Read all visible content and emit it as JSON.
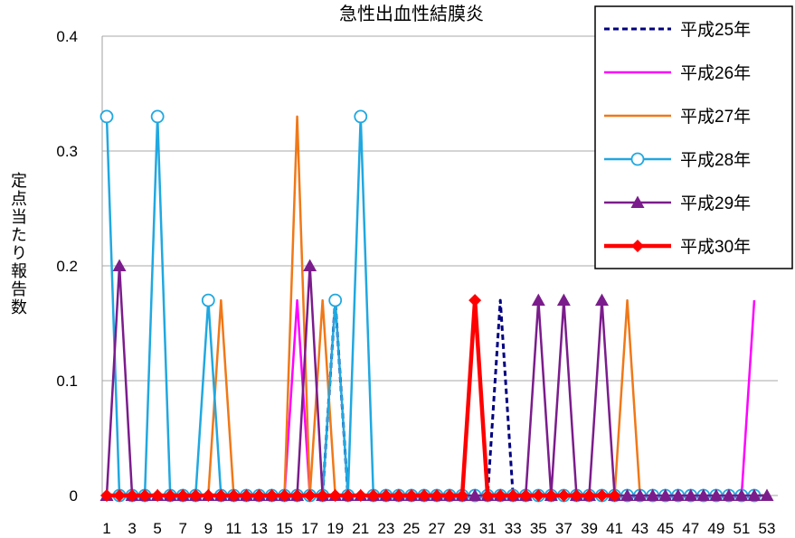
{
  "chart_data": {
    "type": "line",
    "title": "急性出血性結膜炎",
    "ylabel": "定点当たり報告数",
    "xlabel": "",
    "ylim": [
      0,
      0.4
    ],
    "yticks": [
      0,
      0.1,
      0.2,
      0.3,
      0.4
    ],
    "ytick_labels": [
      "0",
      "0.1",
      "0.2",
      "0.3",
      "0.4"
    ],
    "x": [
      1,
      2,
      3,
      4,
      5,
      6,
      7,
      8,
      9,
      10,
      11,
      12,
      13,
      14,
      15,
      16,
      17,
      18,
      19,
      20,
      21,
      22,
      23,
      24,
      25,
      26,
      27,
      28,
      29,
      30,
      31,
      32,
      33,
      34,
      35,
      36,
      37,
      38,
      39,
      40,
      41,
      42,
      43,
      44,
      45,
      46,
      47,
      48,
      49,
      50,
      51,
      52,
      53
    ],
    "xtick_labels": [
      "1",
      "3",
      "5",
      "7",
      "9",
      "11",
      "13",
      "15",
      "17",
      "19",
      "21",
      "23",
      "25",
      "27",
      "29",
      "31",
      "33",
      "35",
      "37",
      "39",
      "41",
      "43",
      "45",
      "47",
      "49",
      "51",
      "53"
    ],
    "grid": "horizontal",
    "legend_position": "top-right",
    "series": [
      {
        "name": "平成25年",
        "color": "#000080",
        "style": "dashed",
        "marker": "none",
        "values": [
          0,
          0,
          0,
          0,
          0,
          0,
          0,
          0,
          0,
          0,
          0,
          0,
          0,
          0,
          0,
          0,
          0,
          0,
          0.17,
          0,
          0,
          0,
          0,
          0,
          0,
          0,
          0,
          0,
          0,
          0,
          0,
          0.17,
          0,
          0,
          0,
          0,
          0,
          0,
          0,
          0,
          0,
          0,
          0,
          0,
          0,
          0,
          0,
          0,
          0,
          0,
          0,
          0,
          0
        ]
      },
      {
        "name": "平成26年",
        "color": "#FF00FF",
        "style": "solid",
        "marker": "none",
        "values": [
          0,
          0,
          0,
          0,
          0,
          0,
          0,
          0,
          0,
          0,
          0,
          0,
          0,
          0,
          0,
          0.17,
          0,
          0,
          0,
          0,
          0,
          0,
          0,
          0,
          0,
          0,
          0,
          0,
          0,
          0,
          0,
          0,
          0,
          0,
          0,
          0,
          0,
          0,
          0,
          0,
          0,
          0,
          0,
          0,
          0,
          0,
          0,
          0,
          0,
          0,
          0,
          0.17,
          null
        ]
      },
      {
        "name": "平成27年",
        "color": "#F07818",
        "style": "solid",
        "marker": "none",
        "values": [
          0,
          0,
          0,
          0,
          0,
          0,
          0,
          0,
          0,
          0.17,
          0,
          0,
          0,
          0,
          0,
          0.33,
          0,
          0.17,
          0,
          0,
          0,
          0,
          0,
          0,
          0,
          0,
          0,
          0,
          0,
          0,
          0,
          0,
          0,
          0,
          0,
          0,
          0,
          0,
          0,
          0,
          0,
          0.17,
          0,
          0,
          0,
          0,
          0,
          0,
          0,
          0,
          0,
          0,
          0
        ]
      },
      {
        "name": "平成28年",
        "color": "#20A8E0",
        "style": "solid",
        "marker": "circle",
        "values": [
          0.33,
          0,
          0,
          0,
          0.33,
          0,
          0,
          0,
          0.17,
          0,
          0,
          0,
          0,
          0,
          0,
          0,
          0,
          0,
          0.17,
          0,
          0.33,
          0,
          0,
          0,
          0,
          0,
          0,
          0,
          0,
          0,
          0,
          0,
          0,
          0,
          0,
          0,
          0,
          0,
          0,
          0,
          0,
          0,
          0,
          0,
          0,
          0,
          0,
          0,
          0,
          0,
          0,
          0,
          null
        ]
      },
      {
        "name": "平成29年",
        "color": "#7B1C8C",
        "style": "solid",
        "marker": "triangle",
        "values": [
          0,
          0.2,
          0,
          0,
          0,
          0,
          0,
          0,
          0,
          0,
          0,
          0,
          0,
          0,
          0,
          0,
          0.2,
          0,
          0,
          0,
          0,
          0,
          0,
          0,
          0,
          0,
          0,
          0,
          0,
          0,
          0,
          0,
          0,
          0,
          0.17,
          0,
          0.17,
          0,
          0,
          0.17,
          0,
          0,
          0,
          0,
          0,
          0,
          0,
          0,
          0,
          0,
          0,
          0,
          0
        ]
      },
      {
        "name": "平成30年",
        "color": "#FF0000",
        "style": "solid-bold",
        "marker": "diamond",
        "values": [
          0,
          0,
          0,
          0,
          0,
          0,
          0,
          0,
          0,
          0,
          0,
          0,
          0,
          0,
          0,
          0,
          0,
          0,
          0,
          0,
          0,
          0,
          0,
          0,
          0,
          0,
          0,
          0,
          0,
          0.17,
          0,
          0,
          0,
          0,
          0,
          0,
          0,
          0,
          0,
          0,
          0,
          null,
          null,
          null,
          null,
          null,
          null,
          null,
          null,
          null,
          null,
          null,
          null
        ]
      }
    ]
  }
}
